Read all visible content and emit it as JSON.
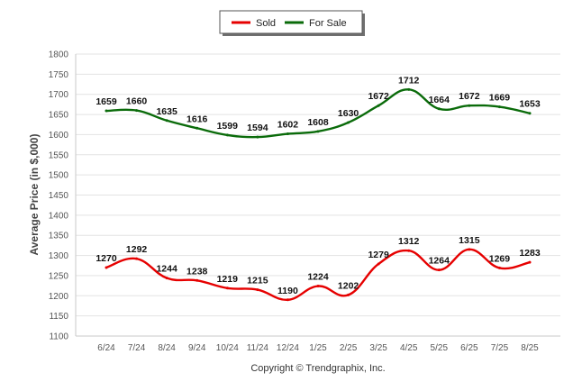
{
  "chart_data": {
    "type": "line",
    "ylabel": "Average Price (in $,000)",
    "ylim": [
      1100,
      1800
    ],
    "yticks": [
      1100,
      1150,
      1200,
      1250,
      1300,
      1350,
      1400,
      1450,
      1500,
      1550,
      1600,
      1650,
      1700,
      1750,
      1800
    ],
    "categories": [
      "6/24",
      "7/24",
      "8/24",
      "9/24",
      "10/24",
      "11/24",
      "12/24",
      "1/25",
      "2/25",
      "3/25",
      "4/25",
      "5/25",
      "6/25",
      "7/25",
      "8/25"
    ],
    "grid": "horizontal",
    "legend_position": "top-center",
    "series": [
      {
        "name": "Sold",
        "color": "#e60000",
        "values": [
          1270,
          1292,
          1244,
          1238,
          1219,
          1215,
          1190,
          1224,
          1202,
          1279,
          1312,
          1264,
          1315,
          1269,
          1283
        ]
      },
      {
        "name": "For Sale",
        "color": "#0a6b0a",
        "values": [
          1659,
          1660,
          1635,
          1616,
          1599,
          1594,
          1602,
          1608,
          1630,
          1672,
          1712,
          1664,
          1672,
          1669,
          1653
        ]
      }
    ]
  },
  "footer": {
    "copyright": "Copyright © Trendgraphix, Inc."
  }
}
